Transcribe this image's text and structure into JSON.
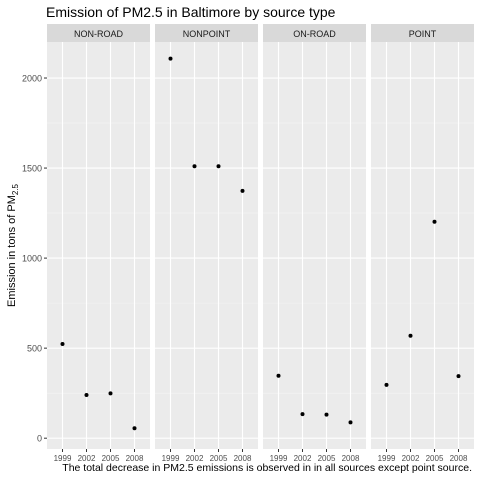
{
  "chart_data": {
    "type": "scatter",
    "title": "Emission of PM2.5 in Baltimore by source type",
    "ylabel_main": "Emission in tons of PM",
    "ylabel_sub": "2.5",
    "xlabel": "",
    "caption": "The total decrease in PM2.5 emissions is observed in in all sources except point source.",
    "x_categories": [
      "1999",
      "2002",
      "2005",
      "2008"
    ],
    "ylim": [
      -60,
      2200
    ],
    "yticks": [
      0,
      500,
      1000,
      1500,
      2000
    ],
    "grid": true,
    "facets": [
      {
        "label": "NON-ROAD",
        "values": [
          523,
          240,
          249,
          55
        ]
      },
      {
        "label": "NONPOINT",
        "values": [
          2108,
          1510,
          1510,
          1373
        ]
      },
      {
        "label": "ON-ROAD",
        "values": [
          347,
          134,
          131,
          88
        ]
      },
      {
        "label": "POINT",
        "values": [
          296,
          569,
          1202,
          345
        ]
      }
    ]
  },
  "colors": {
    "panel_bg": "#ebebeb",
    "strip_bg": "#d9d9d9",
    "grid_major": "#ffffff",
    "grid_minor": "#f5f5f5",
    "point": "#000000",
    "tick_text": "#4d4d4d",
    "tick_mark": "#333333"
  }
}
